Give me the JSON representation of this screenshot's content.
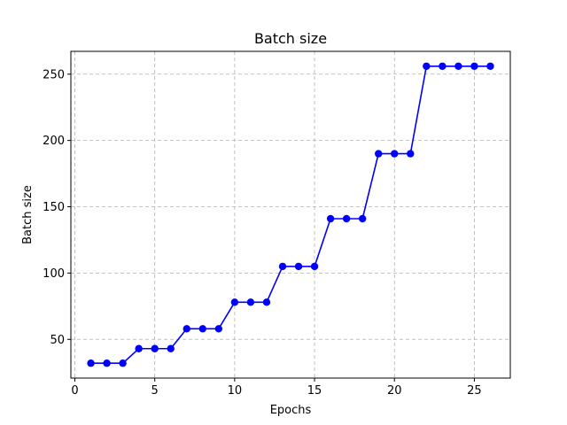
{
  "chart_data": {
    "type": "line",
    "title": "Batch size",
    "xlabel": "Epochs",
    "ylabel": "Batch size",
    "xlim": [
      -0.25,
      27.25
    ],
    "ylim": [
      20.8,
      267.2
    ],
    "xticks": [
      0,
      5,
      10,
      15,
      20,
      25
    ],
    "yticks": [
      50,
      100,
      150,
      200,
      250
    ],
    "grid": true,
    "series": [
      {
        "color": "#0000ff",
        "marker": "circle",
        "x": [
          1,
          2,
          3,
          4,
          5,
          6,
          7,
          8,
          9,
          10,
          11,
          12,
          13,
          14,
          15,
          16,
          17,
          18,
          19,
          20,
          21,
          22,
          23,
          24,
          25,
          26
        ],
        "y": [
          32,
          32,
          32,
          43,
          43,
          43,
          58,
          58,
          58,
          78,
          78,
          78,
          105,
          105,
          105,
          141,
          141,
          141,
          190,
          190,
          190,
          256,
          256,
          256,
          256,
          256
        ]
      }
    ]
  }
}
